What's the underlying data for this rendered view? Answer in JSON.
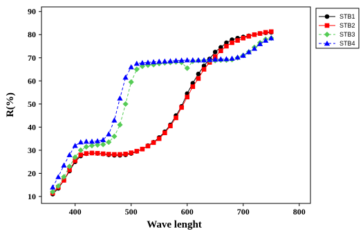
{
  "chart_data": {
    "type": "line",
    "title": "",
    "xlabel": "Wave lenght",
    "ylabel": "R(%)",
    "xlim": [
      340,
      820
    ],
    "ylim": [
      7,
      92
    ],
    "xticks": [
      400,
      500,
      600,
      700,
      800
    ],
    "yticks": [
      10,
      20,
      30,
      40,
      50,
      60,
      70,
      80,
      90
    ],
    "grid": false,
    "legend_position": "top-right",
    "series": [
      {
        "name": "STB1",
        "color": "#000000",
        "marker": "circle",
        "dash": "solid",
        "x": [
          360,
          370,
          380,
          390,
          400,
          410,
          420,
          430,
          440,
          450,
          460,
          470,
          480,
          490,
          500,
          510,
          520,
          530,
          540,
          550,
          560,
          570,
          580,
          590,
          600,
          610,
          620,
          630,
          640,
          650,
          660,
          670,
          680,
          690,
          700,
          710,
          720,
          730,
          740,
          750
        ],
        "y": [
          11,
          13.5,
          17,
          21,
          25,
          27.5,
          28.5,
          28.8,
          28.6,
          28.4,
          28,
          27.8,
          27.8,
          28,
          28.6,
          29.5,
          30.5,
          32,
          33.5,
          35.5,
          38,
          41,
          45,
          49,
          54.5,
          59,
          63,
          66.5,
          69.5,
          72.5,
          74.5,
          76.5,
          77.8,
          78.5,
          79,
          79.5,
          80,
          80.5,
          80.8,
          81
        ]
      },
      {
        "name": "STB2",
        "color": "#ff0000",
        "marker": "square",
        "dash": "solid",
        "x": [
          360,
          370,
          380,
          390,
          400,
          410,
          420,
          430,
          440,
          450,
          460,
          470,
          480,
          490,
          500,
          510,
          520,
          530,
          540,
          550,
          560,
          570,
          580,
          590,
          600,
          610,
          620,
          630,
          640,
          650,
          660,
          670,
          680,
          690,
          700,
          710,
          720,
          730,
          740,
          750
        ],
        "y": [
          11.5,
          14,
          17,
          21.5,
          25.5,
          28,
          28.6,
          28.8,
          28.7,
          28.5,
          28.3,
          28.2,
          28.2,
          28.4,
          28.9,
          29.6,
          30.5,
          31.8,
          33.3,
          35,
          37.5,
          40.5,
          44,
          48.5,
          53,
          57.5,
          61,
          65,
          68,
          70.5,
          73,
          75,
          76.5,
          77.5,
          78.5,
          79.3,
          80,
          80.5,
          81,
          81.3
        ]
      },
      {
        "name": "STB3",
        "color": "#55cc55",
        "marker": "diamond",
        "dash": "dashed",
        "x": [
          360,
          370,
          380,
          390,
          400,
          410,
          420,
          430,
          440,
          450,
          460,
          470,
          480,
          490,
          500,
          510,
          520,
          530,
          540,
          550,
          560,
          570,
          580,
          590,
          600,
          610,
          620,
          630,
          640,
          650,
          660,
          670,
          680,
          690,
          700,
          710,
          720,
          730,
          740,
          750
        ],
        "y": [
          12,
          14.5,
          18.5,
          23,
          27,
          30,
          31.5,
          32,
          32.3,
          32.5,
          33.5,
          36,
          41,
          50,
          59.5,
          65,
          66.3,
          66.8,
          67,
          67.5,
          67.8,
          68,
          68.2,
          68,
          65.5,
          68.5,
          68.8,
          68.8,
          68.8,
          68.8,
          69,
          69,
          69.2,
          70,
          71,
          72.5,
          74.5,
          76.5,
          78,
          78.5
        ]
      },
      {
        "name": "STB4",
        "color": "#0000ff",
        "marker": "triangle",
        "dash": "dashed",
        "x": [
          360,
          370,
          380,
          390,
          400,
          410,
          420,
          430,
          440,
          450,
          460,
          470,
          480,
          490,
          500,
          510,
          520,
          530,
          540,
          550,
          560,
          570,
          580,
          590,
          600,
          610,
          620,
          630,
          640,
          650,
          660,
          670,
          680,
          690,
          700,
          710,
          720,
          730,
          740,
          750
        ],
        "y": [
          14,
          18.5,
          23.5,
          28,
          32,
          33.5,
          33.8,
          33.8,
          34,
          34.5,
          37,
          43,
          52.5,
          61.5,
          66,
          67.5,
          67.8,
          68,
          68.2,
          68.4,
          68.5,
          68.6,
          68.8,
          68.9,
          69,
          69,
          69,
          69,
          69.2,
          69.3,
          69.4,
          69.5,
          69.7,
          70.2,
          71,
          72.5,
          74,
          76,
          77.5,
          78.5
        ]
      }
    ]
  }
}
